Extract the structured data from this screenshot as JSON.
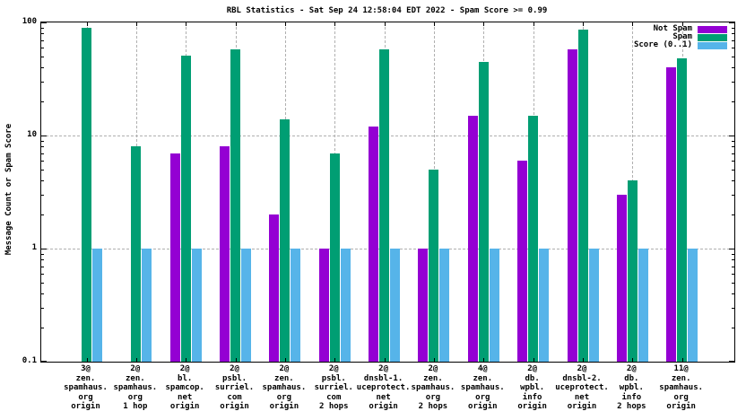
{
  "title": "RBL Statistics - Sat Sep 24 12:58:04 EDT 2022 - Spam Score >= 0.99",
  "colors": {
    "not_spam": "#9400D3",
    "spam": "#009E73",
    "score": "#56B4E9",
    "grid": "#b0b0b0",
    "axis": "#000000",
    "background": "#ffffff"
  },
  "chart_data": {
    "type": "bar",
    "scale": "log",
    "title": "RBL Statistics - Sat Sep 24 12:58:04 EDT 2022 - Spam Score >= 0.99",
    "xlabel": "",
    "ylabel": "Message Count or Spam Score",
    "ylim": [
      0.1,
      100
    ],
    "ytick_values": [
      100,
      10,
      1,
      0.1
    ],
    "ytick_labels": [
      "100",
      "10",
      "1",
      "0.1"
    ],
    "grid": "on",
    "legend_position": "top-right-inside",
    "legend": [
      {
        "name": "Not Spam",
        "color": "#9400D3"
      },
      {
        "name": "Spam",
        "color": "#009E73"
      },
      {
        "name": "Score (0..1)",
        "color": "#56B4E9"
      }
    ],
    "categories": [
      [
        "3@",
        "zen.",
        "spamhaus.",
        "org",
        "origin"
      ],
      [
        "2@",
        "zen.",
        "spamhaus.",
        "org",
        "1 hop"
      ],
      [
        "2@",
        "bl.",
        "spamcop.",
        "net",
        "origin"
      ],
      [
        "2@",
        "psbl.",
        "surriel.",
        "com",
        "origin"
      ],
      [
        "2@",
        "zen.",
        "spamhaus.",
        "org",
        "origin"
      ],
      [
        "2@",
        "psbl.",
        "surriel.",
        "com",
        "2 hops"
      ],
      [
        "2@",
        "dnsbl-1.",
        "uceprotect.",
        "net",
        "origin"
      ],
      [
        "2@",
        "zen.",
        "spamhaus.",
        "org",
        "2 hops"
      ],
      [
        "4@",
        "zen.",
        "spamhaus.",
        "org",
        "origin"
      ],
      [
        "2@",
        "db.",
        "wpbl.",
        "info",
        "origin"
      ],
      [
        "2@",
        "dnsbl-2.",
        "uceprotect.",
        "net",
        "origin"
      ],
      [
        "2@",
        "db.",
        "wpbl.",
        "info",
        "2 hops"
      ],
      [
        "11@",
        "zen.",
        "spamhaus.",
        "org",
        "origin"
      ]
    ],
    "series": [
      {
        "name": "Not Spam",
        "color": "#9400D3",
        "values": [
          null,
          null,
          7,
          8,
          2,
          1,
          12,
          1,
          15,
          6,
          58,
          3,
          40
        ]
      },
      {
        "name": "Spam",
        "color": "#009E73",
        "values": [
          90,
          8,
          51,
          58,
          14,
          7,
          58,
          5,
          45,
          15,
          86,
          4,
          48
        ]
      },
      {
        "name": "Score (0..1)",
        "color": "#56B4E9",
        "values": [
          1,
          1,
          1,
          1,
          1,
          1,
          1,
          1,
          1,
          1,
          1,
          1,
          1
        ]
      }
    ]
  }
}
